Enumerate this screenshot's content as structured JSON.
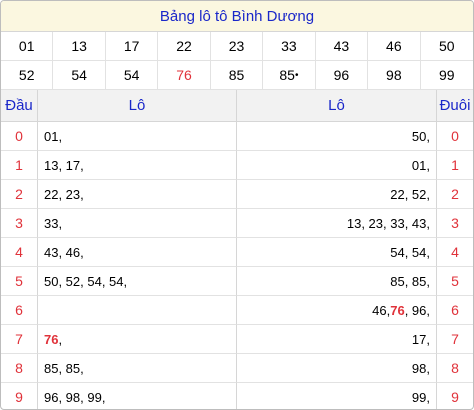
{
  "title": "Bảng lô tô Bình Dương",
  "prizes": [
    {
      "value": "01"
    },
    {
      "value": "13"
    },
    {
      "value": "17"
    },
    {
      "value": "22"
    },
    {
      "value": "23"
    },
    {
      "value": "33"
    },
    {
      "value": "43"
    },
    {
      "value": "46"
    },
    {
      "value": "50"
    },
    {
      "value": "52"
    },
    {
      "value": "54"
    },
    {
      "value": "54"
    },
    {
      "value": "76",
      "highlight": true
    },
    {
      "value": "85"
    },
    {
      "value": "85",
      "suffix": "•"
    },
    {
      "value": "96"
    },
    {
      "value": "98"
    },
    {
      "value": "99"
    }
  ],
  "headers": {
    "dau": "Đầu",
    "lo_left": "Lô",
    "lo_right": "Lô",
    "duoi": "Đuôi"
  },
  "rows": [
    {
      "dau": "0",
      "left": [
        {
          "t": "01, "
        }
      ],
      "right": [
        {
          "t": "50, "
        }
      ],
      "duoi": "0"
    },
    {
      "dau": "1",
      "left": [
        {
          "t": "13, 17, "
        }
      ],
      "right": [
        {
          "t": "01, "
        }
      ],
      "duoi": "1"
    },
    {
      "dau": "2",
      "left": [
        {
          "t": "22, 23, "
        }
      ],
      "right": [
        {
          "t": "22, 52, "
        }
      ],
      "duoi": "2"
    },
    {
      "dau": "3",
      "left": [
        {
          "t": "33, "
        }
      ],
      "right": [
        {
          "t": "13, 23, 33, 43, "
        }
      ],
      "duoi": "3"
    },
    {
      "dau": "4",
      "left": [
        {
          "t": "43, 46, "
        }
      ],
      "right": [
        {
          "t": "54, 54, "
        }
      ],
      "duoi": "4"
    },
    {
      "dau": "5",
      "left": [
        {
          "t": "50, 52, 54, 54, "
        }
      ],
      "right": [
        {
          "t": "85, 85, "
        }
      ],
      "duoi": "5"
    },
    {
      "dau": "6",
      "left": [],
      "right": [
        {
          "t": "46, "
        },
        {
          "t": "76",
          "hl": true
        },
        {
          "t": ", 96, "
        }
      ],
      "duoi": "6"
    },
    {
      "dau": "7",
      "left": [
        {
          "t": "76",
          "hl": true
        },
        {
          "t": ", "
        }
      ],
      "right": [
        {
          "t": "17, "
        }
      ],
      "duoi": "7"
    },
    {
      "dau": "8",
      "left": [
        {
          "t": "85, 85, "
        }
      ],
      "right": [
        {
          "t": "98, "
        }
      ],
      "duoi": "8"
    },
    {
      "dau": "9",
      "left": [
        {
          "t": "96, 98, 99, "
        }
      ],
      "right": [
        {
          "t": "99, "
        }
      ],
      "duoi": "9"
    }
  ],
  "colors": {
    "title_text": "#1a27c9",
    "highlight": "#e0323a",
    "title_bg": "#fbf7e0",
    "header_bg": "#f2f2f2"
  }
}
